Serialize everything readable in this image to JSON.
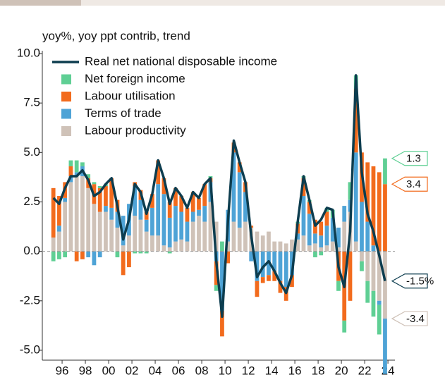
{
  "chart_data": {
    "type": "bar",
    "title": "yoy%, yoy ppt contrib, trend",
    "x": [
      1995.25,
      1995.75,
      1996.25,
      1996.75,
      1997.25,
      1997.75,
      1998.25,
      1998.75,
      1999.25,
      1999.75,
      2000.25,
      2000.75,
      2001.25,
      2001.75,
      2002.25,
      2002.75,
      2003.25,
      2003.75,
      2004.25,
      2004.75,
      2005.25,
      2005.75,
      2006.25,
      2006.75,
      2007.25,
      2007.75,
      2008.25,
      2008.75,
      2009.25,
      2009.75,
      2010.25,
      2010.75,
      2011.25,
      2011.75,
      2012.25,
      2012.75,
      2013.25,
      2013.75,
      2014.25,
      2014.75,
      2015.25,
      2015.75,
      2016.25,
      2016.75,
      2017.25,
      2017.75,
      2018.25,
      2018.75,
      2019.25,
      2019.75,
      2020.25,
      2020.75,
      2021.25,
      2021.75,
      2022.25,
      2022.75,
      2023.25,
      2023.75
    ],
    "series": [
      {
        "name": "Real net national disposable income",
        "type": "line",
        "color": "#0d3d4f",
        "values": [
          2.7,
          2.4,
          3.2,
          3.8,
          3.8,
          4.1,
          3.6,
          2.8,
          3.0,
          3.4,
          3.7,
          2.3,
          0.6,
          1.6,
          3.4,
          3.0,
          1.9,
          2.9,
          4.6,
          3.7,
          2.4,
          3.2,
          2.8,
          2.2,
          3.0,
          2.7,
          3.4,
          3.7,
          -0.5,
          -3.3,
          1.5,
          5.6,
          4.5,
          3.5,
          0.8,
          -1.3,
          -0.8,
          -0.5,
          -1.0,
          -1.6,
          -2.1,
          -1.2,
          1.5,
          3.8,
          2.6,
          1.3,
          1.6,
          2.2,
          2.1,
          -0.8,
          -1.8,
          1.0,
          8.9,
          4.0,
          1.9,
          1.0,
          -0.2,
          -1.5
        ],
        "value_labels": [
          null,
          null,
          null,
          null,
          null,
          null,
          null,
          null,
          null,
          null,
          null,
          null,
          null,
          null,
          null,
          null,
          null,
          null,
          null,
          null,
          null,
          null,
          null,
          null,
          null,
          null,
          null,
          null,
          null,
          null,
          null,
          null,
          null,
          null,
          null,
          null,
          null,
          null,
          null,
          null,
          null,
          null,
          null,
          null,
          null,
          null,
          null,
          null,
          null,
          null,
          null,
          null,
          null,
          null,
          null,
          null,
          null,
          "-1.5%"
        ]
      },
      {
        "name": "Net foreign income",
        "type": "bar",
        "color": "#5fcf94",
        "end_tag": true,
        "values": [
          -0.5,
          -0.4,
          -0.3,
          0.3,
          0.6,
          0.2,
          0.2,
          0.1,
          0.1,
          0.1,
          0.0,
          -0.3,
          0.0,
          0.0,
          -0.1,
          -0.1,
          -0.1,
          0.0,
          0.0,
          0.0,
          -0.1,
          0.0,
          0.0,
          0.0,
          0.0,
          0.0,
          0.0,
          0.1,
          -0.3,
          0.5,
          0.0,
          0.0,
          0.0,
          0.0,
          0.0,
          0.0,
          0.0,
          0.0,
          0.0,
          0.0,
          0.0,
          0.0,
          0.1,
          0.1,
          0.1,
          -0.3,
          -0.2,
          0.2,
          0.4,
          -0.5,
          -0.6,
          0.9,
          0.7,
          -0.5,
          -1.1,
          -1.3,
          -1.5,
          1.3
        ]
      },
      {
        "name": "Labour utilisation",
        "type": "bar",
        "color": "#f26b1d",
        "end_tag": true,
        "values": [
          2.5,
          1.5,
          0.8,
          0.5,
          -0.5,
          -0.4,
          0.5,
          1.0,
          1.2,
          1.0,
          1.5,
          0.6,
          -1.2,
          -0.8,
          0.2,
          0.5,
          0.4,
          0.7,
          1.2,
          0.8,
          0.8,
          0.9,
          0.8,
          0.7,
          1.0,
          0.6,
          1.1,
          0.2,
          -1.2,
          -1.3,
          -0.6,
          0.5,
          0.5,
          0.5,
          0.1,
          -0.8,
          -0.3,
          -0.3,
          -0.5,
          -0.6,
          -0.7,
          -0.6,
          0.5,
          0.9,
          0.6,
          0.7,
          0.7,
          0.7,
          0.0,
          -1.5,
          -3.5,
          -2.5,
          3.2,
          2.5,
          3.0,
          4.0,
          4.0,
          3.4
        ]
      },
      {
        "name": "Terms of trade",
        "type": "bar",
        "color": "#4ea3d6",
        "values": [
          0.0,
          0.3,
          0.2,
          0.3,
          0.2,
          0.5,
          -0.3,
          -0.7,
          -0.3,
          0.3,
          0.6,
          0.8,
          1.5,
          1.6,
          1.5,
          1.0,
          0.6,
          1.4,
          2.6,
          2.6,
          1.5,
          1.8,
          1.4,
          1.0,
          0.5,
          0.3,
          0.8,
          1.0,
          -0.5,
          -3.0,
          1.6,
          3.5,
          2.8,
          1.5,
          -0.5,
          -1.5,
          -1.3,
          -1.2,
          -1.0,
          -1.5,
          -1.8,
          -1.2,
          0.3,
          2.0,
          1.6,
          0.5,
          0.6,
          1.0,
          1.2,
          1.0,
          0.8,
          0.6,
          4.5,
          2.5,
          1.5,
          0.3,
          -0.2,
          -2.8
        ]
      },
      {
        "name": "Labour productivity",
        "type": "bar",
        "color": "#cfc2b8",
        "end_tag": true,
        "values": [
          0.7,
          1.0,
          2.5,
          3.5,
          3.8,
          3.8,
          3.2,
          2.4,
          2.0,
          2.0,
          1.6,
          1.2,
          0.3,
          0.8,
          1.8,
          1.6,
          1.0,
          0.8,
          0.8,
          0.3,
          0.2,
          0.5,
          0.6,
          0.5,
          1.5,
          1.8,
          1.5,
          2.5,
          1.5,
          0.0,
          0.5,
          1.5,
          1.2,
          1.5,
          1.2,
          1.0,
          0.8,
          1.0,
          0.5,
          0.5,
          0.4,
          0.6,
          0.6,
          0.8,
          0.3,
          0.4,
          0.2,
          0.3,
          0.5,
          0.2,
          1.5,
          2.0,
          0.5,
          -0.5,
          -1.5,
          -2.0,
          -2.5,
          -3.4
        ]
      }
    ],
    "xlim": [
      1994.3,
      2024.6
    ],
    "xticks": [
      {
        "value": 1996,
        "label": "96"
      },
      {
        "value": 1998,
        "label": "98"
      },
      {
        "value": 2000,
        "label": "00"
      },
      {
        "value": 2002,
        "label": "02"
      },
      {
        "value": 2004,
        "label": "04"
      },
      {
        "value": 2006,
        "label": "06"
      },
      {
        "value": 2008,
        "label": "08"
      },
      {
        "value": 2010,
        "label": "10"
      },
      {
        "value": 2012,
        "label": "12"
      },
      {
        "value": 2014,
        "label": "14"
      },
      {
        "value": 2016,
        "label": "16"
      },
      {
        "value": 2018,
        "label": "18"
      },
      {
        "value": 2020,
        "label": "20"
      },
      {
        "value": 2022,
        "label": "22"
      },
      {
        "value": 2024,
        "label": "24"
      }
    ],
    "ylim": [
      -5.5,
      10
    ],
    "yticks": [
      {
        "value": -5,
        "label": "-5.0"
      },
      {
        "value": -2.5,
        "label": "-2.5"
      },
      {
        "value": 0,
        "label": "0.0"
      },
      {
        "value": 2.5,
        "label": "2.5"
      },
      {
        "value": 5,
        "label": "5.0"
      },
      {
        "value": 7.5,
        "label": "7.5"
      },
      {
        "value": 10,
        "label": "10.0"
      }
    ]
  }
}
